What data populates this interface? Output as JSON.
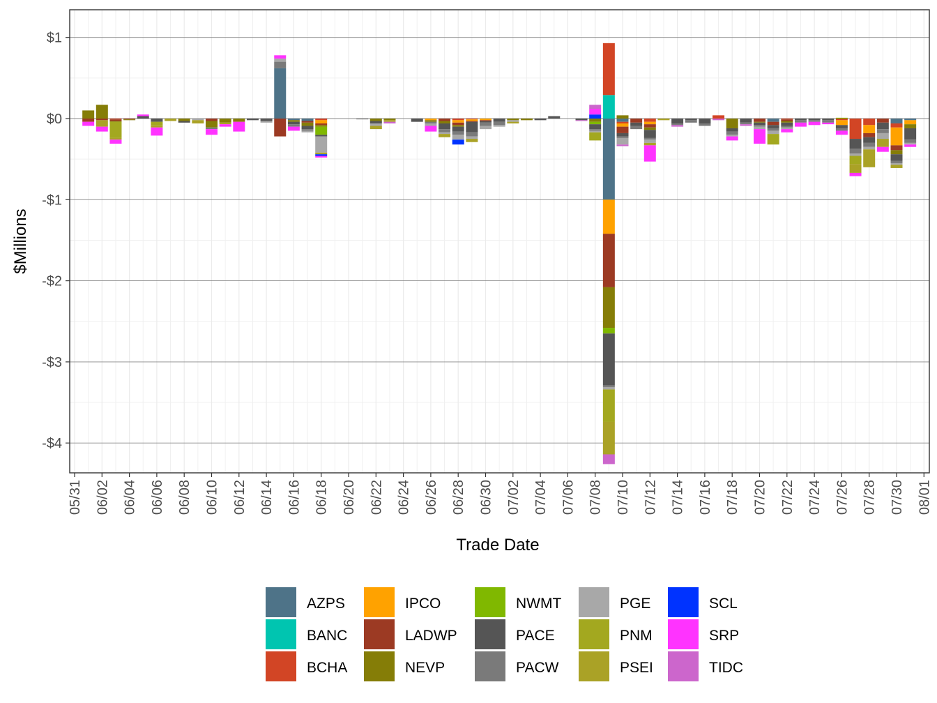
{
  "chart_data": {
    "type": "bar",
    "stacked": true,
    "xlabel": "Trade Date",
    "ylabel": "$Millions",
    "ylim": [
      -4.35,
      1.35
    ],
    "yticks": [
      1,
      0,
      -1,
      -2,
      -3,
      -4
    ],
    "ytick_labels": [
      "$1",
      "$0",
      "-$1",
      "-$2",
      "-$3",
      "-$4"
    ],
    "xticks": [
      "05/31",
      "06/02",
      "06/04",
      "06/06",
      "06/08",
      "06/10",
      "06/12",
      "06/14",
      "06/16",
      "06/18",
      "06/20",
      "06/22",
      "06/24",
      "06/26",
      "06/28",
      "06/30",
      "07/02",
      "07/04",
      "07/06",
      "07/08",
      "07/10",
      "07/12",
      "07/14",
      "07/16",
      "07/18",
      "07/20",
      "07/22",
      "07/24",
      "07/26",
      "07/28",
      "07/30",
      "08/01"
    ],
    "grid": true,
    "legend_position": "bottom",
    "categories": [
      "06/01",
      "06/02",
      "06/03",
      "06/04",
      "06/05",
      "06/06",
      "06/07",
      "06/08",
      "06/09",
      "06/10",
      "06/11",
      "06/12",
      "06/13",
      "06/14",
      "06/15",
      "06/16",
      "06/17",
      "06/18",
      "06/19",
      "06/20",
      "06/21",
      "06/22",
      "06/23",
      "06/24",
      "06/25",
      "06/26",
      "06/27",
      "06/28",
      "06/29",
      "06/30",
      "07/01",
      "07/02",
      "07/03",
      "07/04",
      "07/05",
      "07/06",
      "07/07",
      "07/08",
      "07/09",
      "07/10",
      "07/11",
      "07/12",
      "07/13",
      "07/14",
      "07/15",
      "07/16",
      "07/17",
      "07/18",
      "07/19",
      "07/20",
      "07/21",
      "07/22",
      "07/23",
      "07/24",
      "07/25",
      "07/26",
      "07/27",
      "07/28",
      "07/29",
      "07/30",
      "07/31"
    ],
    "series": [
      {
        "name": "AZPS",
        "color": "#4e7388",
        "values": [
          0,
          0,
          0,
          0,
          0,
          0,
          0,
          0,
          0,
          0,
          0,
          0,
          0,
          0,
          0.62,
          -0.02,
          -0.03,
          0,
          0,
          0,
          0,
          0,
          0,
          0,
          0,
          0,
          0,
          0,
          0,
          0,
          0,
          0,
          0,
          0,
          0,
          0,
          0,
          0,
          -1.0,
          -0.04,
          0,
          0,
          0,
          0,
          0,
          0,
          0,
          0,
          0,
          0,
          -0.04,
          0,
          0,
          0,
          0,
          0,
          0,
          0,
          0,
          -0.06,
          -0.02
        ]
      },
      {
        "name": "BANC",
        "color": "#00c5b0",
        "values": [
          0,
          0,
          0,
          0,
          0,
          0,
          0,
          0,
          0,
          0,
          0,
          0,
          0,
          0,
          0,
          0,
          0,
          0,
          0,
          0,
          0,
          0,
          0,
          0,
          0,
          0,
          0,
          0,
          0,
          0,
          0,
          0,
          0,
          0,
          0,
          0,
          0,
          0,
          0.29,
          0,
          0,
          0,
          0,
          0,
          0,
          0,
          0,
          0,
          0,
          0,
          0,
          0,
          0,
          0,
          0,
          0,
          0,
          0,
          0,
          0,
          0
        ]
      },
      {
        "name": "BCHA",
        "color": "#d24525",
        "values": [
          0,
          0,
          -0.01,
          0,
          0,
          0,
          0,
          0,
          0,
          0,
          0,
          0,
          0,
          0,
          0,
          0,
          0,
          -0.02,
          0,
          0,
          0,
          0,
          0,
          0,
          0,
          0,
          0,
          -0.02,
          -0.01,
          0,
          0,
          0,
          0,
          0,
          0,
          0,
          0,
          0,
          0.64,
          -0.02,
          0,
          -0.04,
          0,
          0,
          0,
          0,
          0.04,
          0,
          0,
          0,
          0,
          -0.01,
          0,
          0,
          0,
          -0.02,
          -0.25,
          -0.08,
          0,
          -0.05,
          0
        ]
      },
      {
        "name": "IPCO",
        "color": "#ffa200",
        "values": [
          0,
          0,
          0,
          0,
          0,
          0,
          0,
          0,
          0,
          0,
          0,
          0,
          0,
          0,
          0,
          0,
          0,
          -0.04,
          0,
          0,
          0,
          0,
          0,
          0,
          0,
          -0.02,
          0,
          -0.03,
          -0.02,
          -0.02,
          0,
          0,
          0,
          0,
          0,
          0,
          0,
          0,
          -0.42,
          -0.04,
          0,
          -0.03,
          0,
          0,
          0,
          0,
          0,
          0,
          0,
          0,
          0,
          0,
          0,
          0,
          0,
          -0.06,
          0,
          -0.1,
          0,
          -0.22,
          -0.05
        ]
      },
      {
        "name": "LADWP",
        "color": "#9c3a23",
        "values": [
          -0.04,
          -0.02,
          -0.02,
          -0.01,
          0,
          0,
          0,
          0,
          0,
          -0.03,
          0,
          0,
          0,
          0,
          -0.22,
          0,
          -0.02,
          -0.02,
          0,
          0,
          0,
          0,
          0,
          0,
          0,
          0,
          -0.03,
          -0.03,
          -0.01,
          -0.01,
          0,
          0,
          0,
          0,
          0,
          0,
          0,
          0,
          -0.66,
          -0.08,
          -0.05,
          -0.04,
          0,
          0,
          0,
          0,
          0,
          0,
          0,
          -0.04,
          -0.04,
          -0.02,
          0,
          0,
          0,
          0,
          0,
          -0.05,
          -0.05,
          -0.06,
          0
        ]
      },
      {
        "name": "NEVP",
        "color": "#857d07",
        "values": [
          0.1,
          0.17,
          -0.01,
          -0.01,
          0,
          0,
          0,
          -0.03,
          0,
          -0.08,
          -0.05,
          -0.04,
          0,
          0,
          0,
          -0.02,
          -0.04,
          -0.02,
          0,
          0,
          0,
          -0.03,
          -0.02,
          0,
          0,
          -0.02,
          -0.03,
          -0.02,
          0,
          0,
          0,
          -0.02,
          -0.02,
          0,
          0,
          0,
          0,
          -0.04,
          -0.5,
          0.04,
          0,
          -0.03,
          0,
          0,
          0,
          0,
          0,
          -0.12,
          0,
          -0.01,
          0,
          -0.02,
          0,
          0,
          0,
          0,
          0,
          0,
          0,
          -0.05,
          -0.05
        ]
      },
      {
        "name": "NWMT",
        "color": "#80b800",
        "values": [
          0,
          0,
          0,
          0,
          0,
          0,
          0,
          0,
          0,
          0,
          0,
          0,
          0,
          0,
          0,
          0,
          0,
          -0.1,
          0,
          0,
          0,
          0,
          0,
          0,
          0,
          0,
          0,
          0,
          0,
          0,
          0,
          0,
          0,
          0,
          0,
          0,
          0,
          -0.03,
          -0.07,
          0,
          0,
          0,
          0,
          0,
          0,
          0,
          0,
          0,
          0,
          0,
          0,
          0,
          0,
          0,
          0,
          0.01,
          0,
          0,
          0,
          0,
          0
        ]
      },
      {
        "name": "PACE",
        "color": "#555555",
        "values": [
          0,
          0,
          0,
          0,
          0.03,
          -0.04,
          0,
          -0.02,
          0,
          0,
          0,
          0,
          -0.02,
          -0.03,
          0,
          -0.03,
          -0.04,
          -0.02,
          0,
          0,
          0,
          -0.03,
          0,
          0,
          -0.04,
          0,
          -0.07,
          -0.06,
          -0.13,
          -0.02,
          -0.04,
          0,
          0,
          -0.02,
          0.03,
          0,
          -0.02,
          -0.06,
          -0.64,
          -0.04,
          -0.04,
          -0.1,
          0,
          -0.06,
          -0.02,
          -0.06,
          0,
          -0.04,
          -0.05,
          -0.03,
          -0.04,
          -0.04,
          -0.02,
          -0.02,
          -0.02,
          -0.04,
          -0.12,
          -0.07,
          -0.08,
          -0.08,
          -0.14
        ]
      },
      {
        "name": "PACW",
        "color": "#7a7a7a",
        "values": [
          0,
          0,
          0,
          0,
          0,
          0,
          0,
          0,
          0,
          -0.02,
          0,
          0,
          0,
          0,
          0.08,
          -0.03,
          -0.02,
          0,
          0,
          0,
          -0.01,
          0,
          0,
          0,
          0,
          -0.02,
          -0.04,
          -0.04,
          -0.05,
          -0.04,
          -0.04,
          0,
          0,
          0,
          0,
          0,
          0,
          -0.02,
          -0.02,
          -0.02,
          -0.04,
          -0.02,
          0,
          -0.02,
          -0.03,
          -0.03,
          0,
          -0.04,
          -0.02,
          -0.02,
          -0.03,
          -0.02,
          -0.03,
          -0.02,
          -0.03,
          -0.03,
          -0.06,
          -0.05,
          -0.05,
          -0.03,
          -0.04
        ]
      },
      {
        "name": "PGE",
        "color": "#a8a8a8",
        "values": [
          0,
          0,
          0,
          0,
          0,
          0,
          0,
          0,
          -0.02,
          0,
          0,
          0,
          0,
          -0.02,
          0.04,
          0,
          -0.02,
          -0.2,
          0,
          0,
          0,
          -0.03,
          0,
          0,
          0,
          -0.03,
          -0.02,
          -0.06,
          -0.03,
          -0.04,
          -0.02,
          -0.02,
          0,
          0,
          0,
          0,
          0,
          -0.02,
          -0.03,
          -0.08,
          0,
          -0.04,
          0,
          0,
          0,
          0,
          0,
          -0.02,
          0,
          -0.03,
          -0.04,
          -0.02,
          0,
          0,
          0,
          0,
          -0.03,
          -0.03,
          -0.07,
          -0.02,
          -0.02
        ]
      },
      {
        "name": "PNM",
        "color": "#a3a81f",
        "values": [
          0,
          0,
          -0.2,
          0,
          0,
          -0.04,
          0,
          0,
          0,
          0,
          0,
          0,
          0,
          0,
          0,
          0,
          0,
          0,
          0,
          0,
          0,
          0,
          0,
          0,
          0,
          0,
          0,
          0,
          0,
          0,
          0,
          0,
          0,
          0,
          0,
          0,
          0,
          -0.1,
          -0.4,
          0,
          0,
          0,
          0,
          0,
          0,
          0,
          0,
          0,
          0,
          0,
          -0.13,
          0,
          0,
          0,
          0,
          0,
          -0.1,
          0,
          0,
          0,
          0
        ]
      },
      {
        "name": "PSEI",
        "color": "#aaa226",
        "values": [
          0,
          -0.08,
          -0.02,
          0,
          0,
          -0.03,
          -0.03,
          0,
          -0.04,
          0,
          -0.02,
          0,
          0,
          0,
          0,
          0,
          0,
          -0.02,
          0,
          0,
          0,
          -0.04,
          -0.02,
          0,
          0,
          0,
          -0.04,
          0,
          -0.04,
          0,
          0,
          -0.02,
          0,
          0,
          0,
          0,
          0,
          0,
          -0.4,
          0,
          0,
          -0.03,
          -0.02,
          0,
          0,
          0,
          0,
          0,
          0,
          0,
          0,
          0,
          0,
          0,
          0,
          0,
          -0.11,
          -0.22,
          -0.1,
          -0.04,
          0
        ]
      },
      {
        "name": "SCL",
        "color": "#0033ff",
        "values": [
          0,
          0,
          0,
          0,
          0,
          0,
          0,
          0,
          0,
          0,
          0,
          0,
          0,
          0,
          0,
          0,
          0,
          -0.02,
          0,
          0,
          0,
          0,
          0,
          0,
          0,
          0,
          0,
          -0.06,
          0,
          0,
          0,
          0,
          0,
          0,
          0,
          0,
          0,
          0.05,
          0,
          0,
          0,
          0,
          0,
          0,
          0,
          0,
          0,
          0,
          0,
          0,
          0,
          0,
          0,
          0,
          0,
          0,
          0,
          0,
          0,
          0,
          0
        ]
      },
      {
        "name": "SRP",
        "color": "#ff33ff",
        "values": [
          -0.05,
          -0.06,
          -0.05,
          0,
          0.02,
          -0.1,
          0,
          0,
          0,
          -0.07,
          -0.03,
          -0.12,
          0,
          0,
          0.04,
          -0.05,
          0,
          -0.02,
          0,
          0,
          0,
          0,
          0,
          0,
          0,
          -0.07,
          0,
          0,
          0,
          0,
          0,
          0,
          0,
          0,
          0,
          0,
          0,
          0.07,
          0,
          0,
          0,
          -0.2,
          0,
          0,
          0,
          0,
          0,
          -0.05,
          0,
          -0.18,
          0,
          -0.04,
          -0.05,
          -0.04,
          -0.02,
          -0.05,
          -0.04,
          0,
          -0.06,
          0,
          -0.03
        ]
      },
      {
        "name": "TIDC",
        "color": "#cc66cc",
        "values": [
          0,
          0,
          0,
          0,
          0,
          0,
          0,
          0,
          0,
          0,
          0,
          0,
          0,
          0,
          0,
          0,
          0,
          0,
          0,
          0,
          0,
          0,
          -0.02,
          0,
          0,
          0,
          0,
          0,
          0,
          0,
          0,
          0,
          0,
          0,
          0,
          0,
          -0.01,
          0.05,
          -0.12,
          -0.02,
          0,
          0,
          0,
          -0.02,
          0,
          0,
          -0.02,
          0,
          -0.02,
          0,
          0,
          0,
          0,
          0,
          0,
          0,
          0,
          0,
          0,
          0,
          0
        ]
      }
    ]
  }
}
